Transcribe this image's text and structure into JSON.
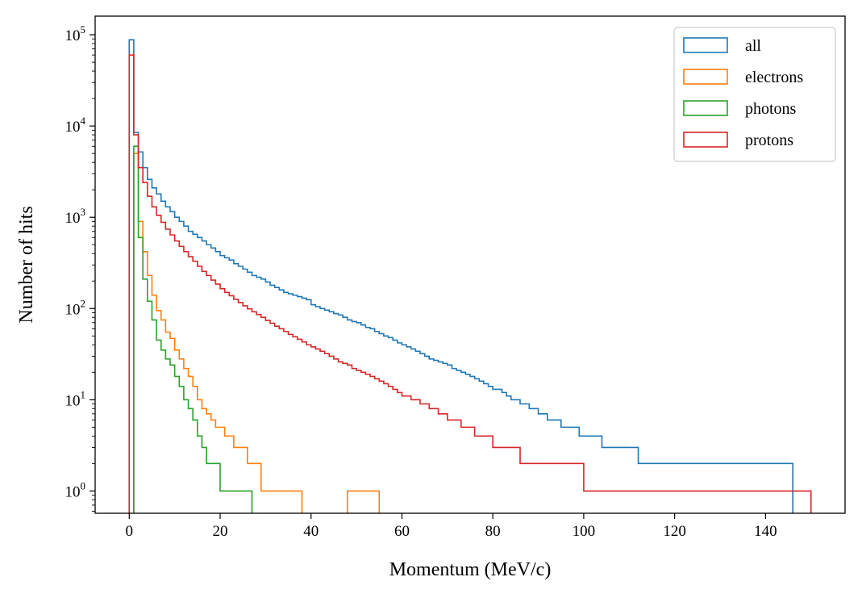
{
  "chart_data": {
    "type": "histogram-step",
    "xlabel": "Momentum (MeV/c)",
    "ylabel": "Number of hits",
    "xlim": [
      -7.5,
      157.5
    ],
    "ylim": [
      0.57,
      160000
    ],
    "yscale": "log",
    "bin_width": 1,
    "bin_start": 0,
    "x_ticks": [
      0,
      20,
      40,
      60,
      80,
      100,
      120,
      140
    ],
    "y_ticks": [
      {
        "base": "10",
        "exp": "0",
        "value": 1
      },
      {
        "base": "10",
        "exp": "1",
        "value": 10
      },
      {
        "base": "10",
        "exp": "2",
        "value": 100
      },
      {
        "base": "10",
        "exp": "3",
        "value": 1000
      },
      {
        "base": "10",
        "exp": "4",
        "value": 10000
      },
      {
        "base": "10",
        "exp": "5",
        "value": 100000
      }
    ],
    "legend_position": "top-right",
    "series": [
      {
        "name": "all",
        "color": "#1f77b4",
        "counts": [
          88000,
          8500,
          5200,
          3500,
          2600,
          2100,
          1800,
          1500,
          1300,
          1150,
          1000,
          900,
          800,
          700,
          650,
          600,
          550,
          500,
          460,
          420,
          380,
          360,
          340,
          310,
          290,
          270,
          250,
          230,
          220,
          210,
          195,
          180,
          170,
          160,
          150,
          145,
          140,
          135,
          130,
          125,
          110,
          105,
          100,
          96,
          92,
          88,
          85,
          80,
          75,
          72,
          70,
          66,
          62,
          60,
          56,
          53,
          50,
          48,
          45,
          42,
          40,
          38,
          36,
          34,
          32,
          30,
          28,
          27,
          26,
          25,
          24,
          22,
          21,
          20,
          19,
          18,
          17,
          16,
          15,
          14,
          13,
          13,
          12,
          11,
          10,
          10,
          9,
          9,
          8,
          8,
          7,
          7,
          6,
          6,
          6,
          5,
          5,
          5,
          5,
          4,
          4,
          4,
          4,
          4,
          3,
          3,
          3,
          3,
          3,
          3,
          3,
          3,
          2,
          2,
          2,
          2,
          2,
          2,
          2,
          2,
          2,
          2,
          2,
          2,
          2,
          2,
          2,
          2,
          2,
          2,
          2,
          2,
          2,
          2,
          2,
          2,
          2,
          2,
          2,
          2,
          2,
          2,
          2,
          2,
          2,
          2
        ]
      },
      {
        "name": "electrons",
        "color": "#ff7f0e",
        "counts": [
          0,
          5000,
          900,
          420,
          230,
          140,
          95,
          75,
          55,
          47,
          35,
          28,
          22,
          18,
          14,
          10,
          8,
          7,
          6,
          5,
          5,
          4,
          4,
          3,
          3,
          3,
          2,
          2,
          2,
          1,
          1,
          1,
          1,
          1,
          1,
          1,
          1,
          1,
          0,
          0,
          0,
          0,
          0,
          0,
          0,
          0,
          0,
          0,
          1,
          1,
          1,
          1,
          1,
          1,
          1
        ]
      },
      {
        "name": "photons",
        "color": "#2ca02c",
        "counts": [
          0,
          6000,
          600,
          210,
          120,
          75,
          45,
          35,
          28,
          24,
          18,
          14,
          10,
          8,
          6,
          4,
          3,
          2,
          2,
          2,
          1,
          1,
          1,
          1,
          1,
          1,
          1
        ]
      },
      {
        "name": "protons",
        "color": "#d62728",
        "counts": [
          60000,
          8000,
          3500,
          2400,
          1700,
          1300,
          1050,
          880,
          740,
          640,
          550,
          480,
          420,
          370,
          330,
          290,
          255,
          230,
          205,
          185,
          165,
          150,
          138,
          126,
          116,
          107,
          99,
          92,
          86,
          80,
          74,
          69,
          64,
          60,
          56,
          52,
          49,
          46,
          43,
          40,
          38,
          36,
          34,
          32,
          30,
          28,
          26,
          25,
          24,
          22,
          21,
          20,
          19,
          18,
          17,
          16,
          15,
          14,
          13,
          12,
          11,
          11,
          10,
          10,
          9,
          9,
          8,
          8,
          7,
          7,
          6,
          6,
          6,
          5,
          5,
          5,
          4,
          4,
          4,
          4,
          3,
          3,
          3,
          3,
          3,
          3,
          2,
          2,
          2,
          2,
          2,
          2,
          2,
          2,
          2,
          2,
          2,
          2,
          2,
          2,
          1,
          1,
          1,
          1,
          1,
          1,
          1,
          1,
          1,
          1,
          1,
          1,
          1,
          1,
          1,
          1,
          1,
          1,
          1,
          1,
          1,
          1,
          1,
          1,
          1,
          1,
          1,
          1,
          1,
          1,
          1,
          1,
          1,
          1,
          1,
          1,
          1,
          1,
          1,
          1,
          1,
          1,
          1,
          1,
          1,
          1,
          1,
          1,
          1,
          1
        ]
      }
    ]
  }
}
